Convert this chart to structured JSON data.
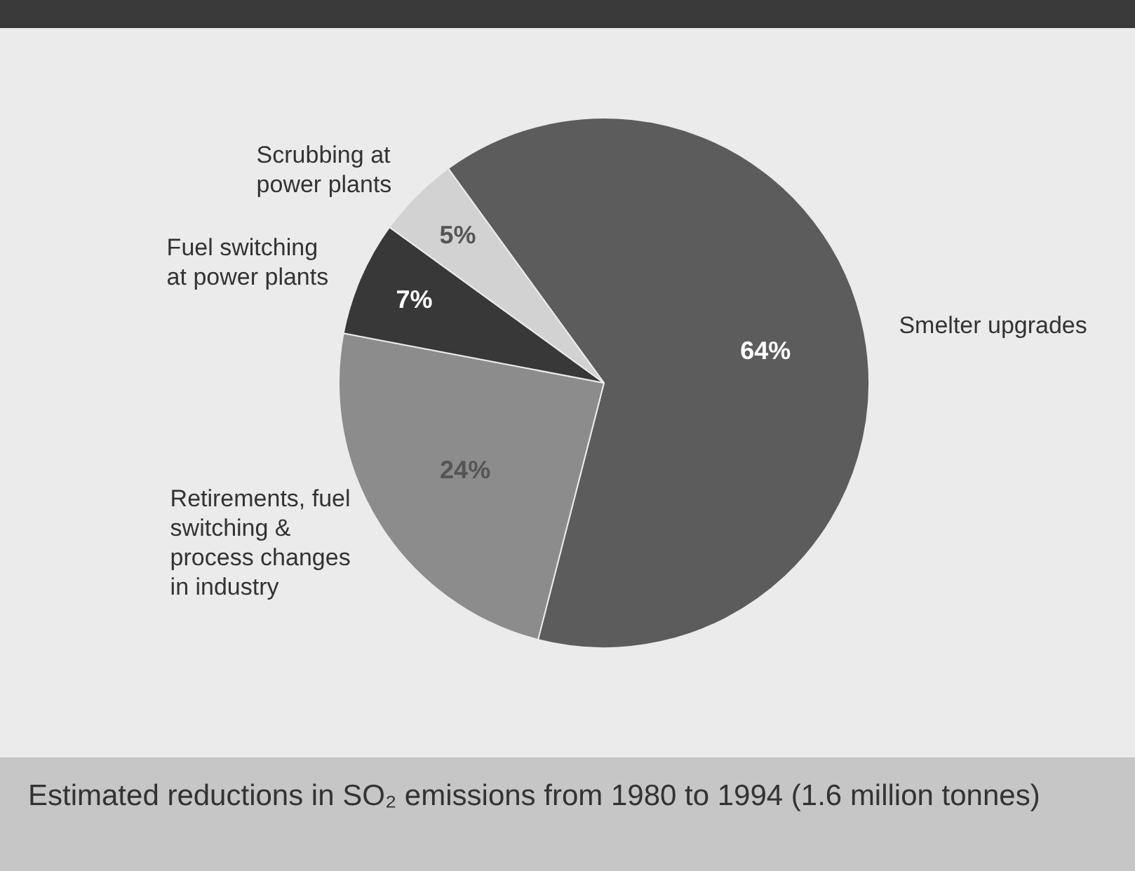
{
  "chart_data": {
    "type": "pie",
    "title": "Estimated reductions in SO₂ emissions from 1980 to 1994 (1.6 million tonnes)",
    "categories": [
      "Smelter upgrades",
      "Retirements, fuel switching & process changes in industry",
      "Fuel switching at power plants",
      "Scrubbing at power plants"
    ],
    "values": [
      64,
      24,
      7,
      5
    ],
    "colors": [
      "#5c5c5c",
      "#8c8c8c",
      "#383838",
      "#d2d2d2"
    ],
    "value_labels": [
      "64%",
      "24%",
      "7%",
      "5%"
    ],
    "legend": false
  }
}
